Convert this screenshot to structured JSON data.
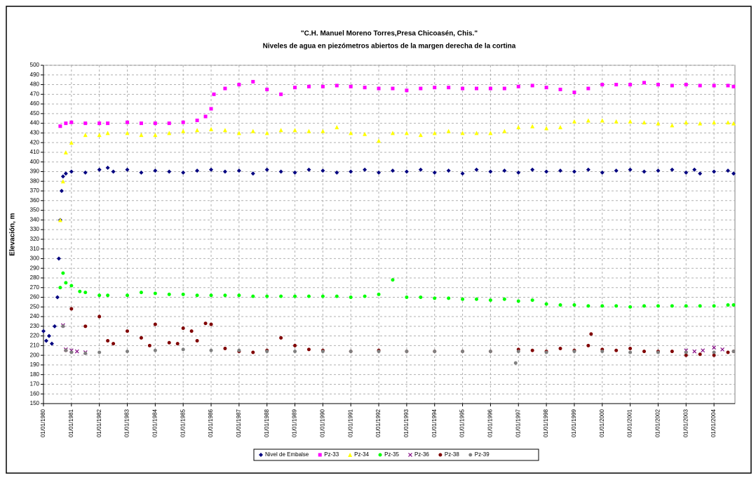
{
  "chart_data": {
    "type": "scatter",
    "title": "\"C.H. Manuel Moreno Torres,Presa Chicoasén, Chis.\"",
    "subtitle": "Niveles de agua en piezómetros abiertos de la margen derecha de la cortina",
    "y_label": "Elevación, m",
    "xlim": [
      1980,
      2004.75
    ],
    "ylim": [
      150,
      500
    ],
    "yticks": [
      150,
      160,
      170,
      180,
      190,
      200,
      210,
      220,
      230,
      240,
      250,
      260,
      270,
      280,
      290,
      300,
      310,
      320,
      330,
      340,
      350,
      360,
      370,
      380,
      390,
      400,
      410,
      420,
      430,
      440,
      450,
      460,
      470,
      480,
      490,
      500
    ],
    "xticks": [
      {
        "value": 1980,
        "label": "01/01/1980"
      },
      {
        "value": 1981,
        "label": "01/01/1981"
      },
      {
        "value": 1982,
        "label": "01/01/1982"
      },
      {
        "value": 1983,
        "label": "01/01/1983"
      },
      {
        "value": 1984,
        "label": "01/01/1984"
      },
      {
        "value": 1985,
        "label": "01/01/1985"
      },
      {
        "value": 1986,
        "label": "01/01/1986"
      },
      {
        "value": 1987,
        "label": "01/01/1987"
      },
      {
        "value": 1988,
        "label": "01/01/1988"
      },
      {
        "value": 1989,
        "label": "01/01/1989"
      },
      {
        "value": 1990,
        "label": "01/01/1990"
      },
      {
        "value": 1991,
        "label": "01/01/1991"
      },
      {
        "value": 1992,
        "label": "01/01/1992"
      },
      {
        "value": 1993,
        "label": "01/01/1993"
      },
      {
        "value": 1994,
        "label": "01/01/1994"
      },
      {
        "value": 1995,
        "label": "01/01/1995"
      },
      {
        "value": 1996,
        "label": "01/01/1996"
      },
      {
        "value": 1997,
        "label": "01/01/1997"
      },
      {
        "value": 1998,
        "label": "01/01/1998"
      },
      {
        "value": 1999,
        "label": "01/01/1999"
      },
      {
        "value": 2000,
        "label": "01/01/2000"
      },
      {
        "value": 2001,
        "label": "01/01/2001"
      },
      {
        "value": 2002,
        "label": "01/01/2002"
      },
      {
        "value": 2003,
        "label": "01/01/2003"
      },
      {
        "value": 2004,
        "label": "01/01/2004"
      }
    ],
    "grid": true,
    "legend": "bottom",
    "series": [
      {
        "name": "Nivel de Embalse",
        "color": "#000080",
        "marker": "diamond",
        "x": [
          1980,
          1980.1,
          1980.2,
          1980.3,
          1980.4,
          1980.5,
          1980.55,
          1980.6,
          1980.65,
          1980.7,
          1980.8,
          1981,
          1981.5,
          1982,
          1982.3,
          1982.5,
          1983,
          1983.5,
          1984,
          1984.5,
          1985,
          1985.5,
          1986,
          1986.5,
          1987,
          1987.5,
          1988,
          1988.5,
          1989,
          1989.5,
          1990,
          1990.5,
          1991,
          1991.5,
          1992,
          1992.5,
          1993,
          1993.5,
          1994,
          1994.5,
          1995,
          1995.5,
          1996,
          1996.5,
          1997,
          1997.5,
          1998,
          1998.5,
          1999,
          1999.5,
          2000,
          2000.5,
          2001,
          2001.5,
          2002,
          2002.5,
          2003,
          2003.3,
          2003.5,
          2004,
          2004.5,
          2004.7
        ],
        "values": [
          225,
          215,
          220,
          212,
          230,
          260,
          300,
          340,
          370,
          385,
          388,
          390,
          389,
          392,
          394,
          390,
          392,
          389,
          391,
          390,
          389,
          391,
          392,
          390,
          391,
          388,
          392,
          390,
          389,
          392,
          391,
          389,
          390,
          392,
          389,
          391,
          390,
          392,
          389,
          391,
          388,
          392,
          390,
          391,
          389,
          392,
          390,
          391,
          390,
          392,
          389,
          391,
          392,
          390,
          391,
          392,
          389,
          392,
          388,
          390,
          391,
          388
        ]
      },
      {
        "name": "Pz-33",
        "color": "#ff00ff",
        "marker": "square",
        "x": [
          1980.6,
          1980.8,
          1981,
          1981.5,
          1982,
          1982.3,
          1983,
          1983.5,
          1984,
          1984.5,
          1985,
          1985.5,
          1985.8,
          1986,
          1986.1,
          1986.5,
          1987,
          1987.5,
          1988,
          1988.5,
          1989,
          1989.5,
          1990,
          1990.5,
          1991,
          1991.5,
          1992,
          1992.5,
          1993,
          1993.5,
          1994,
          1994.5,
          1995,
          1995.5,
          1996,
          1996.5,
          1997,
          1997.5,
          1998,
          1998.5,
          1999,
          1999.5,
          2000,
          2000.5,
          2001,
          2001.5,
          2002,
          2002.5,
          2003,
          2003.5,
          2004,
          2004.5,
          2004.7
        ],
        "values": [
          437,
          440,
          441,
          440,
          440,
          440,
          441,
          440,
          440,
          440,
          441,
          443,
          447,
          455,
          470,
          476,
          480,
          483,
          475,
          470,
          477,
          478,
          478,
          479,
          478,
          477,
          476,
          476,
          474,
          476,
          477,
          477,
          476,
          476,
          476,
          476,
          478,
          479,
          477,
          475,
          472,
          476,
          480,
          480,
          480,
          482,
          480,
          479,
          480,
          479,
          479,
          479,
          478
        ]
      },
      {
        "name": "Pz-34",
        "color": "#ffff00",
        "marker": "triangle",
        "x": [
          1980.6,
          1980.7,
          1980.8,
          1981,
          1981.5,
          1982,
          1982.3,
          1983,
          1983.5,
          1984,
          1984.5,
          1985,
          1985.5,
          1986,
          1986.5,
          1987,
          1987.5,
          1988,
          1988.5,
          1989,
          1989.5,
          1990,
          1990.5,
          1991,
          1991.5,
          1992,
          1992.5,
          1993,
          1993.5,
          1994,
          1994.5,
          1995,
          1995.5,
          1996,
          1996.5,
          1997,
          1997.5,
          1998,
          1998.5,
          1999,
          1999.5,
          2000,
          2000.5,
          2001,
          2001.5,
          2002,
          2002.5,
          2003,
          2003.5,
          2004,
          2004.5,
          2004.7
        ],
        "values": [
          340,
          380,
          410,
          420,
          428,
          428,
          430,
          430,
          428,
          428,
          430,
          432,
          433,
          434,
          433,
          430,
          432,
          430,
          433,
          433,
          432,
          432,
          436,
          430,
          429,
          422,
          430,
          430,
          428,
          430,
          432,
          430,
          430,
          430,
          432,
          436,
          437,
          435,
          436,
          442,
          443,
          443,
          442,
          442,
          441,
          440,
          438,
          441,
          440,
          441,
          441,
          440
        ]
      },
      {
        "name": "Pz-35",
        "color": "#00ff00",
        "marker": "circle",
        "x": [
          1980.6,
          1980.7,
          1980.8,
          1981,
          1981.3,
          1981.5,
          1982,
          1982.3,
          1983,
          1983.5,
          1984,
          1984.5,
          1985,
          1985.5,
          1986,
          1986.5,
          1987,
          1987.5,
          1988,
          1988.5,
          1989,
          1989.5,
          1990,
          1990.5,
          1991,
          1991.5,
          1992,
          1992.5,
          1993,
          1993.5,
          1994,
          1994.5,
          1995,
          1995.5,
          1996,
          1996.5,
          1997,
          1997.5,
          1998,
          1998.5,
          1999,
          1999.5,
          2000,
          2000.5,
          2001,
          2001.5,
          2002,
          2002.5,
          2003,
          2003.5,
          2004,
          2004.5,
          2004.7
        ],
        "values": [
          270,
          285,
          275,
          272,
          266,
          265,
          262,
          262,
          262,
          265,
          264,
          263,
          263,
          262,
          262,
          262,
          262,
          261,
          261,
          261,
          261,
          261,
          261,
          261,
          260,
          261,
          263,
          278,
          260,
          260,
          259,
          259,
          258,
          258,
          257,
          258,
          256,
          257,
          253,
          252,
          252,
          251,
          251,
          251,
          250,
          251,
          251,
          251,
          251,
          251,
          251,
          252,
          252
        ]
      },
      {
        "name": "Pz-36",
        "color": "#800080",
        "marker": "x",
        "x": [
          1980.7,
          1980.8,
          1981,
          1981.2,
          1981.5,
          2003,
          2003.3,
          2003.6,
          2004,
          2004.3
        ],
        "values": [
          231,
          206,
          205,
          204,
          203,
          205,
          204,
          205,
          208,
          206
        ]
      },
      {
        "name": "Pz-38",
        "color": "#800000",
        "marker": "circle",
        "x": [
          1980.8,
          1981,
          1981.5,
          1982,
          1982.3,
          1982.5,
          1983,
          1983.5,
          1983.8,
          1984,
          1984.5,
          1984.8,
          1985,
          1985.3,
          1985.5,
          1985.8,
          1986,
          1986.5,
          1987,
          1987.5,
          1988,
          1988.5,
          1989,
          1989.5,
          1990,
          1991,
          1992,
          1993,
          1994,
          1995,
          1996,
          1997,
          1997.5,
          1998,
          1998.5,
          1999,
          1999.5,
          1999.6,
          2000,
          2000.5,
          2001,
          2001.5,
          2002,
          2002.5,
          2003,
          2003.5,
          2004,
          2004.5,
          2004.7
        ],
        "values": [
          205,
          248,
          230,
          240,
          215,
          212,
          225,
          218,
          210,
          232,
          213,
          212,
          228,
          225,
          215,
          233,
          232,
          207,
          204,
          203,
          205,
          218,
          210,
          206,
          205,
          204,
          205,
          204,
          204,
          204,
          204,
          206,
          205,
          204,
          207,
          205,
          210,
          222,
          206,
          205,
          207,
          204,
          204,
          204,
          200,
          201,
          200,
          203,
          204
        ]
      },
      {
        "name": "Pz-39",
        "color": "#808080",
        "marker": "circle",
        "x": [
          1980.7,
          1980.8,
          1981,
          1981.5,
          1982,
          1983,
          1984,
          1985,
          1986,
          1987,
          1988,
          1989,
          1990,
          1991,
          1992,
          1993,
          1994,
          1995,
          1996,
          1996.9,
          1997,
          1998,
          1999,
          2000,
          2001,
          2002,
          2003,
          2004,
          2004.7
        ],
        "values": [
          230,
          205,
          203,
          202,
          203,
          204,
          205,
          206,
          205,
          205,
          204,
          204,
          204,
          204,
          204,
          204,
          204,
          204,
          204,
          192,
          204,
          203,
          204,
          204,
          203,
          203,
          203,
          203,
          204
        ]
      }
    ]
  }
}
